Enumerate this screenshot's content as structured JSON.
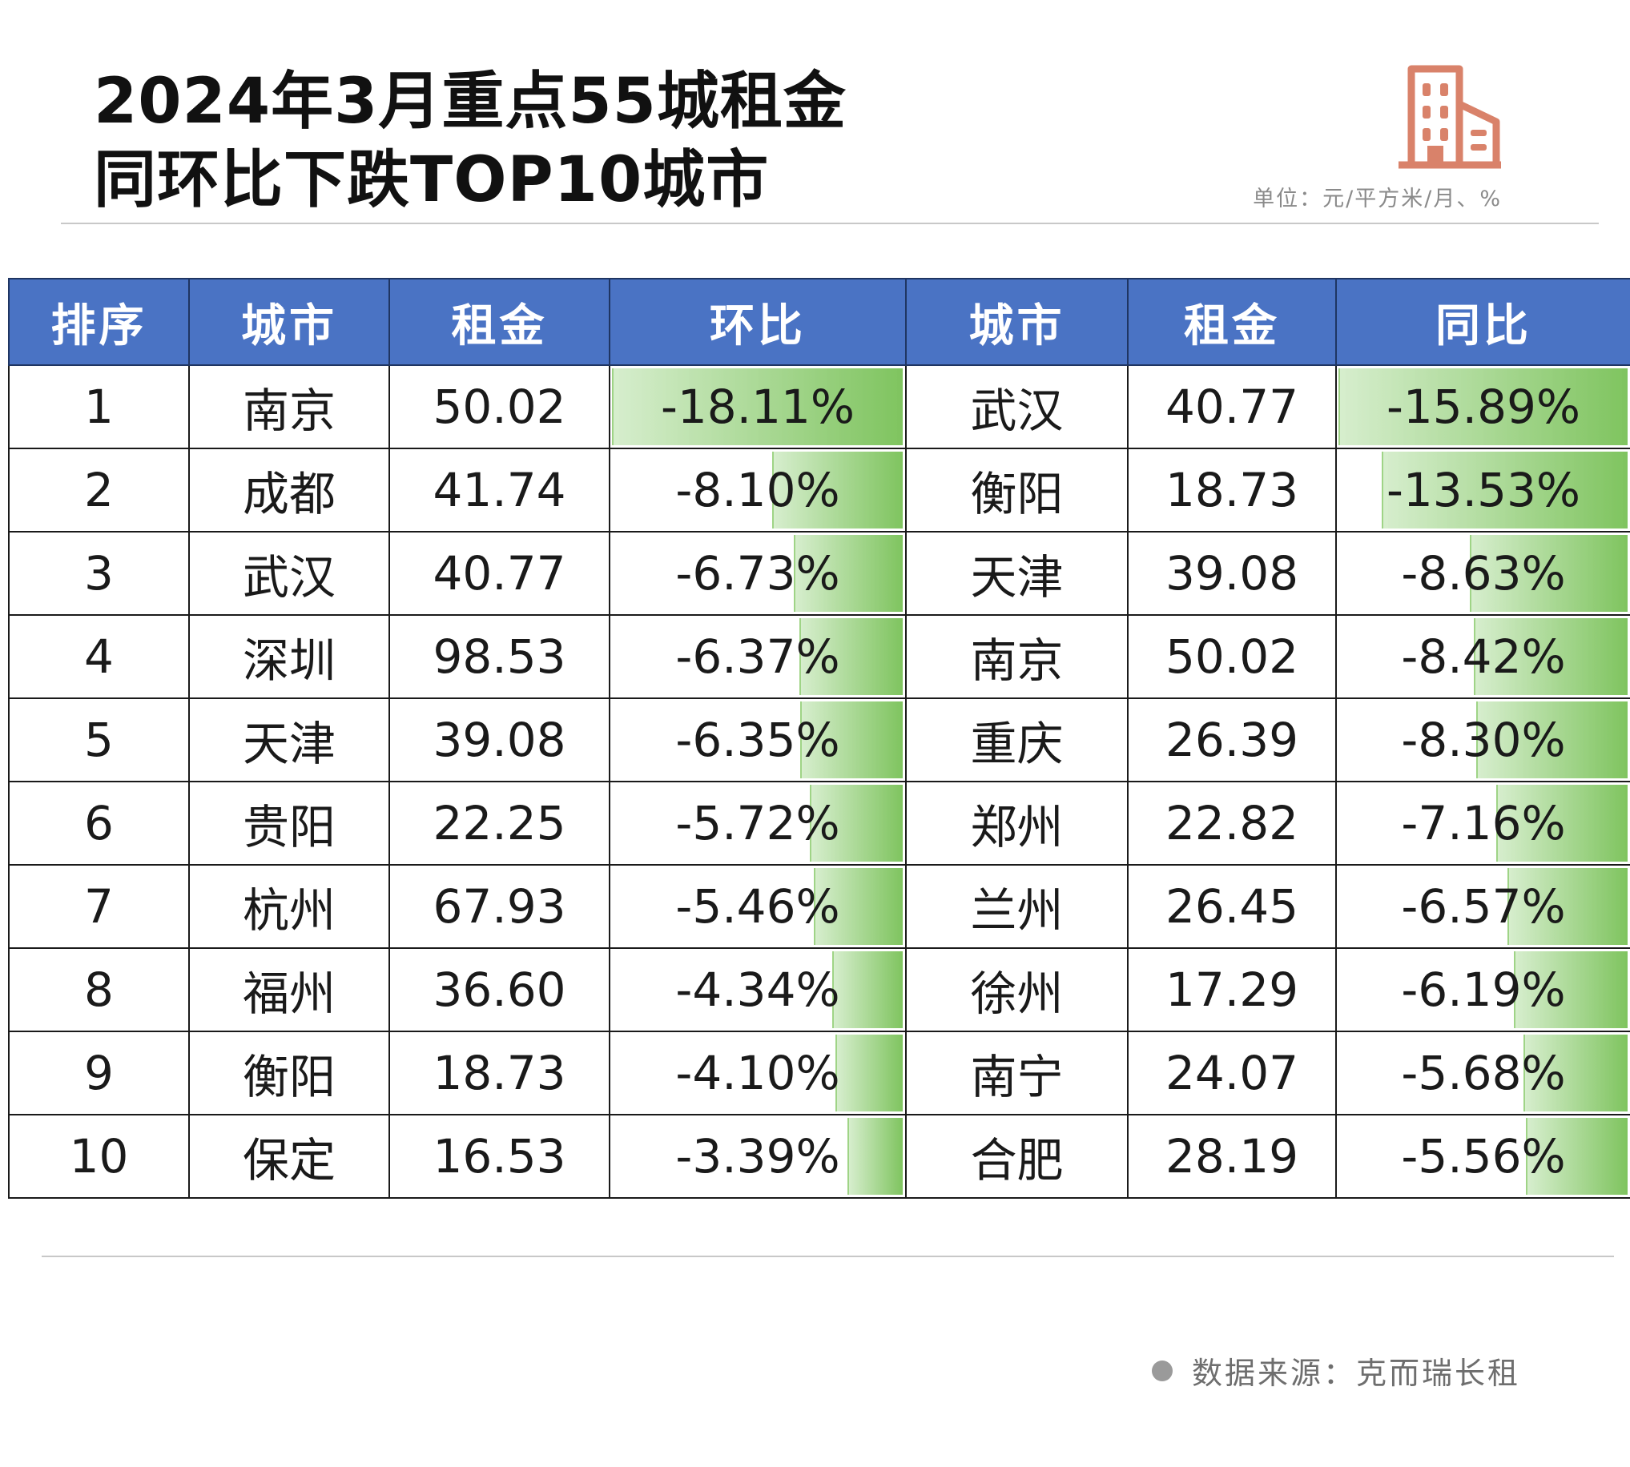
{
  "header": {
    "title_line1": "2024年3月重点55城租金",
    "title_line2": "同环比下跌TOP10城市",
    "unit": "单位：元/平方米/月、%",
    "icon": "building-icon"
  },
  "colors": {
    "header_bg": "#4a73c4",
    "bar_green": "#7fc45f",
    "icon_color": "#d9826a"
  },
  "table": {
    "columns": [
      "排序",
      "城市",
      "租金",
      "环比",
      "城市",
      "租金",
      "同比"
    ]
  },
  "chart_data": {
    "type": "table",
    "title": "2024年3月重点55城租金同环比下跌TOP10城市",
    "unit": "元/平方米/月、%",
    "mom": {
      "name": "环比",
      "ranks": [
        "1",
        "2",
        "3",
        "4",
        "5",
        "6",
        "7",
        "8",
        "9",
        "10"
      ],
      "cities": [
        "南京",
        "成都",
        "武汉",
        "深圳",
        "天津",
        "贵阳",
        "杭州",
        "福州",
        "衡阳",
        "保定"
      ],
      "rents": [
        "50.02",
        "41.74",
        "40.77",
        "98.53",
        "39.08",
        "22.25",
        "67.93",
        "36.60",
        "18.73",
        "16.53"
      ],
      "changes": [
        "-18.11%",
        "-8.10%",
        "-6.73%",
        "-6.37%",
        "-6.35%",
        "-5.72%",
        "-5.46%",
        "-4.34%",
        "-4.10%",
        "-3.39%"
      ],
      "values": [
        -18.11,
        -8.1,
        -6.73,
        -6.37,
        -6.35,
        -5.72,
        -5.46,
        -4.34,
        -4.1,
        -3.39
      ]
    },
    "yoy": {
      "name": "同比",
      "cities": [
        "武汉",
        "衡阳",
        "天津",
        "南京",
        "重庆",
        "郑州",
        "兰州",
        "徐州",
        "南宁",
        "合肥"
      ],
      "rents": [
        "40.77",
        "18.73",
        "39.08",
        "50.02",
        "26.39",
        "22.82",
        "26.45",
        "17.29",
        "24.07",
        "28.19"
      ],
      "changes": [
        "-15.89%",
        "-13.53%",
        "-8.63%",
        "-8.42%",
        "-8.30%",
        "-7.16%",
        "-6.57%",
        "-6.19%",
        "-5.68%",
        "-5.56%"
      ],
      "values": [
        -15.89,
        -13.53,
        -8.63,
        -8.42,
        -8.3,
        -7.16,
        -6.57,
        -6.19,
        -5.68,
        -5.56
      ]
    }
  },
  "footer": {
    "source": "数据来源：克而瑞长租"
  }
}
